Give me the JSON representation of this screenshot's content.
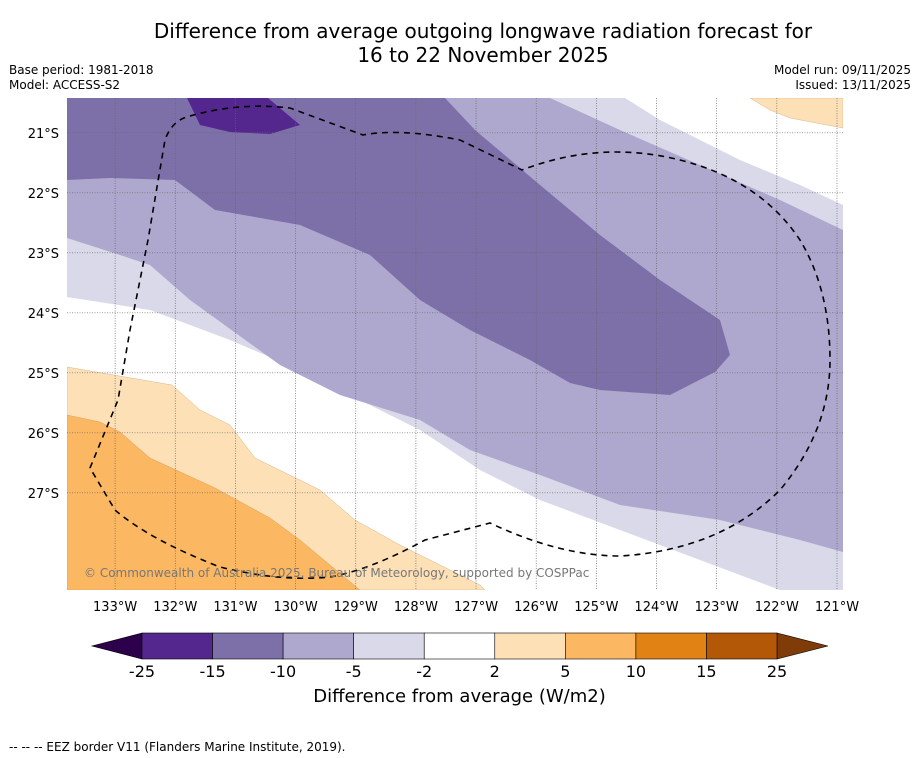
{
  "header": {
    "title_line1": "Difference from average outgoing longwave radiation forecast for",
    "title_line2": "16 to 22 November 2025",
    "base_period": "Base period: 1981-2018",
    "model": "Model: ACCESS-S2",
    "model_run": "Model run: 09/11/2025",
    "issued": "Issued: 13/11/2025"
  },
  "map": {
    "lat_labels": [
      "21°S",
      "22°S",
      "23°S",
      "24°S",
      "25°S",
      "26°S",
      "27°S"
    ],
    "lat_values": [
      -21,
      -22,
      -23,
      -24,
      -25,
      -26,
      -27
    ],
    "lon_labels": [
      "133°W",
      "132°W",
      "131°W",
      "130°W",
      "129°W",
      "128°W",
      "127°W",
      "126°W",
      "125°W",
      "124°W",
      "123°W",
      "122°W",
      "121°W"
    ],
    "lon_values": [
      -133,
      -132,
      -131,
      -130,
      -129,
      -128,
      -127,
      -126,
      -125,
      -124,
      -123,
      -122,
      -121
    ],
    "extent": {
      "lon_min": -133.8,
      "lon_max": -120.9,
      "lat_max": -20.42,
      "lat_min": -28.62
    },
    "copyright": "© Commonwealth of Australia 2025, Bureau of Meteorology, supported by COSPPac",
    "boundary": "EEZ border",
    "contour_levels": [
      {
        "range": "-15 to -10",
        "color": "#7d70a8"
      },
      {
        "range": "-25 to -15",
        "color": "#54278f"
      },
      {
        "range": "-10 to -5",
        "color": "#aea8cf"
      },
      {
        "range": "-5 to -2",
        "color": "#d9d9ea"
      },
      {
        "range": "-2 to 2",
        "color": "#ffffff"
      },
      {
        "range": "2 to 5",
        "color": "#fde0b6"
      },
      {
        "range": "5 to 10",
        "color": "#fbb762"
      }
    ]
  },
  "colorbar": {
    "ticks": [
      "-25",
      "-15",
      "-10",
      "-5",
      "-2",
      "2",
      "5",
      "10",
      "15",
      "25"
    ],
    "low_extend_color": "#2d004b",
    "high_extend_color": "#7f3b08",
    "bins": [
      {
        "from": -25,
        "to": -15,
        "color": "#54278f"
      },
      {
        "from": -15,
        "to": -10,
        "color": "#7d70a8"
      },
      {
        "from": -10,
        "to": -5,
        "color": "#aea8cf"
      },
      {
        "from": -5,
        "to": -2,
        "color": "#d9d9ea"
      },
      {
        "from": -2,
        "to": 2,
        "color": "#ffffff"
      },
      {
        "from": 2,
        "to": 5,
        "color": "#fde0b6"
      },
      {
        "from": 5,
        "to": 10,
        "color": "#fbb762"
      },
      {
        "from": 10,
        "to": 15,
        "color": "#e08214"
      },
      {
        "from": 15,
        "to": 25,
        "color": "#b35806"
      }
    ],
    "label": "Difference from average (W/m2)"
  },
  "footer": {
    "legend_text": "--  --  -- EEZ border V11 (Flanders Marine Institute, 2019)."
  }
}
